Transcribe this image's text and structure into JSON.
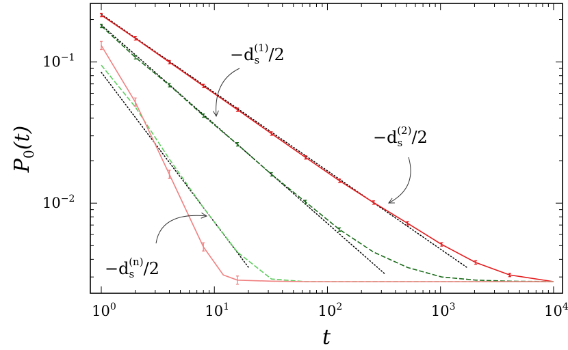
{
  "chart_data": {
    "type": "line",
    "xscale": "log",
    "yscale": "log",
    "xlim": [
      0.8,
      12000
    ],
    "ylim": [
      0.0023,
      0.26
    ],
    "grid": false,
    "legend": "none",
    "xlabel": "t",
    "ylabel": "P0(t)",
    "x_ticks": [
      {
        "base": "10",
        "exp": "0",
        "value": 1
      },
      {
        "base": "10",
        "exp": "1",
        "value": 10
      },
      {
        "base": "10",
        "exp": "2",
        "value": 100
      },
      {
        "base": "10",
        "exp": "3",
        "value": 1000
      },
      {
        "base": "10",
        "exp": "4",
        "value": 10000
      }
    ],
    "y_ticks": [
      {
        "base": "10",
        "exp": "−1",
        "value": 0.1
      },
      {
        "base": "10",
        "exp": "−2",
        "value": 0.01
      }
    ],
    "series": [
      {
        "style": "solid",
        "color": "#e41a1c",
        "x": [
          1,
          2,
          4,
          8,
          16,
          32,
          64,
          128,
          256,
          512,
          1024,
          2048,
          4096,
          10000
        ],
        "y": [
          0.215,
          0.147,
          0.0997,
          0.0676,
          0.0459,
          0.0311,
          0.0211,
          0.0144,
          0.0101,
          0.0072,
          0.0051,
          0.0038,
          0.0031,
          0.00278
        ],
        "err_x": [
          1,
          2,
          4,
          8,
          16,
          32,
          64,
          128,
          256,
          512,
          1024,
          2048,
          4096
        ]
      },
      {
        "style": "dashed",
        "color": "#1a6b1a",
        "x": [
          1,
          2,
          4,
          8,
          16,
          32,
          64,
          128,
          256,
          512,
          1024,
          2048,
          4096,
          10000
        ],
        "y": [
          0.18,
          0.108,
          0.0685,
          0.0417,
          0.0261,
          0.016,
          0.0102,
          0.0065,
          0.0045,
          0.0035,
          0.003,
          0.00285,
          0.0028,
          0.00278
        ],
        "err_x": [
          1,
          2,
          4,
          8,
          16,
          32,
          64,
          128
        ]
      },
      {
        "style": "dashed",
        "color": "#5ccc5c",
        "x": [
          1,
          2,
          4,
          8,
          16,
          32,
          64,
          128,
          10000
        ],
        "y": [
          0.095,
          0.048,
          0.0205,
          0.0093,
          0.0045,
          0.0029,
          0.00278,
          0.00278,
          0.00278
        ],
        "err_x": []
      },
      {
        "style": "solid",
        "color": "#f08080",
        "x": [
          1,
          2,
          4,
          8,
          12,
          16,
          32,
          64,
          128,
          10000
        ],
        "y": [
          0.131,
          0.052,
          0.016,
          0.0049,
          0.0031,
          0.00285,
          0.0028,
          0.00278,
          0.00278,
          0.00278
        ],
        "err_x": [
          1,
          2,
          4,
          8,
          16
        ]
      }
    ],
    "reference_lines": [
      {
        "style": "dotted",
        "color": "#000000",
        "x": [
          1,
          1700
        ],
        "y": [
          0.218,
          0.00352
        ]
      },
      {
        "style": "dotted",
        "color": "#000000",
        "x": [
          1,
          320
        ],
        "y": [
          0.183,
          0.00317
        ]
      },
      {
        "style": "dotted",
        "color": "#000000",
        "x": [
          1,
          20
        ],
        "y": [
          0.0845,
          0.00352
        ]
      }
    ],
    "annotations": [
      {
        "prefix": "−d",
        "sub": "s",
        "sup": "(1)",
        "suffix": "/2"
      },
      {
        "prefix": "−d",
        "sub": "s",
        "sup": "(2)",
        "suffix": "/2"
      },
      {
        "prefix": "−d",
        "sub": "s",
        "sup": "(n)",
        "suffix": "/2"
      }
    ]
  }
}
